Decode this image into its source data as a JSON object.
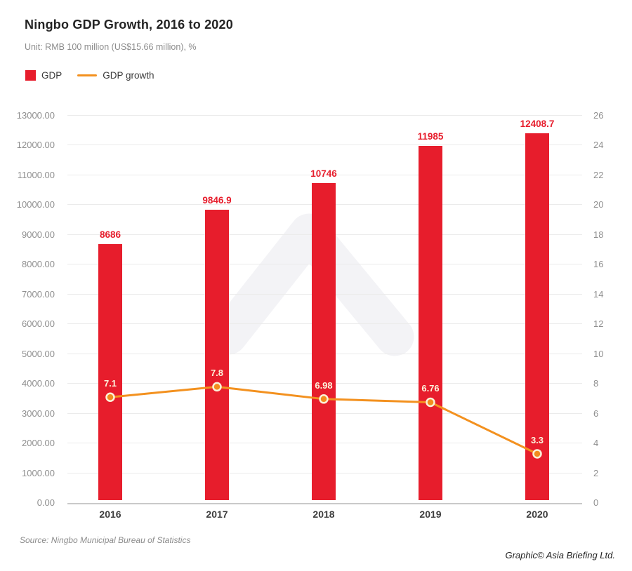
{
  "header": {
    "title": "Ningbo GDP Growth, 2016 to 2020",
    "subtitle": "Unit: RMB 100 million (US$15.66 million), %"
  },
  "legend": [
    {
      "label": "GDP",
      "swatch": "square",
      "color": "#E71D2C"
    },
    {
      "label": "GDP growth",
      "swatch": "line",
      "color": "#F3911F"
    }
  ],
  "chart_data": {
    "type": "bar",
    "subtype": "bar-and-line-combo",
    "categories": [
      "2016",
      "2017",
      "2018",
      "2019",
      "2020"
    ],
    "series": [
      {
        "name": "GDP",
        "type": "bar",
        "axis": "left",
        "color": "#E71D2C",
        "values": [
          8686,
          9846.9,
          10746,
          11985,
          12408.7
        ],
        "labels": [
          "8686",
          "9846.9",
          "10746",
          "11985",
          "12408.7"
        ]
      },
      {
        "name": "GDP growth",
        "type": "line",
        "axis": "right",
        "color": "#F3911F",
        "values": [
          7.1,
          7.8,
          6.98,
          6.76,
          3.3
        ],
        "labels": [
          "7.1",
          "7.8",
          "6.98",
          "6.76",
          "3.3"
        ]
      }
    ],
    "left_axis": {
      "min": 0,
      "max": 13000,
      "step": 1000,
      "decimals": 2
    },
    "right_axis": {
      "min": 0,
      "max": 26,
      "step": 2,
      "decimals": 0
    },
    "grid": true,
    "legend_position": "top-left",
    "title": "Ningbo GDP Growth, 2016 to 2020"
  },
  "footer": {
    "source": "Source: Ningbo Municipal Bureau of Statistics",
    "credit": "Graphic© Asia Briefing Ltd."
  },
  "colors": {
    "bar": "#E71D2C",
    "line": "#F3911F",
    "marker_fill": "#F28C1E",
    "marker_ring": "#FBF1D8",
    "growth_label": "#FCF3DC",
    "gridline": "#EBEBEB",
    "axis_line": "#C9C9C9",
    "tick_text": "#8F8F8F",
    "watermark": "#F3F3F6"
  }
}
